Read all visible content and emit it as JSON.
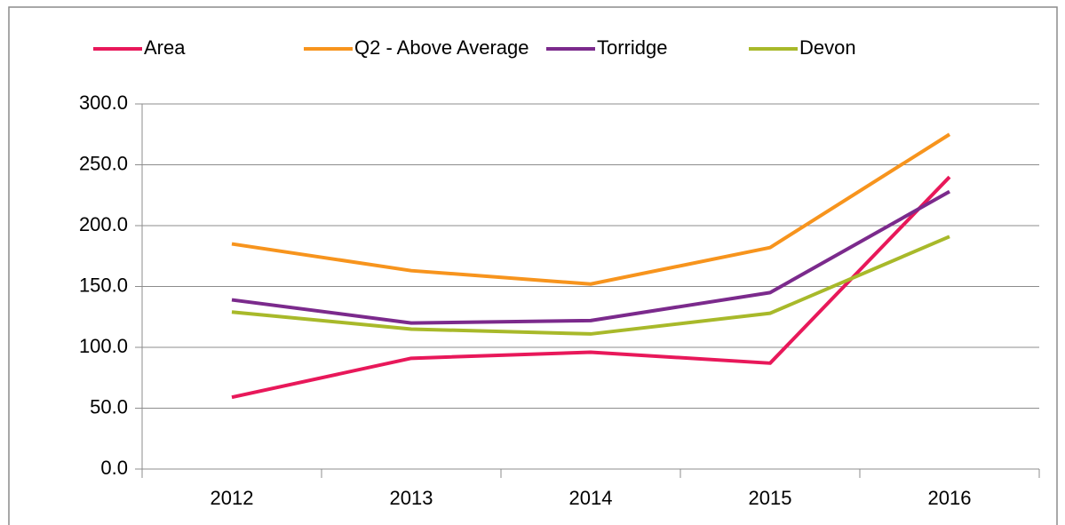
{
  "chart_data": {
    "type": "line",
    "categories": [
      "2012",
      "2013",
      "2014",
      "2015",
      "2016"
    ],
    "series": [
      {
        "name": "Area",
        "color": "#e8185a",
        "values": [
          59,
          91,
          96,
          87,
          240
        ]
      },
      {
        "name": "Q2 - Above Average",
        "color": "#f7941d",
        "values": [
          185,
          163,
          152,
          182,
          275
        ]
      },
      {
        "name": "Torridge",
        "color": "#7b2a8c",
        "values": [
          139,
          120,
          122,
          145,
          228
        ]
      },
      {
        "name": "Devon",
        "color": "#a8b92a",
        "values": [
          129,
          115,
          111,
          128,
          191
        ]
      }
    ],
    "ylim": [
      0,
      300
    ],
    "yticks": [
      {
        "value": 0,
        "label": "0.0"
      },
      {
        "value": 50,
        "label": "50.0"
      },
      {
        "value": 100,
        "label": "100.0"
      },
      {
        "value": 150,
        "label": "150.0"
      },
      {
        "value": 200,
        "label": "200.0"
      },
      {
        "value": 250,
        "label": "250.0"
      },
      {
        "value": 300,
        "label": "300.0"
      }
    ],
    "grid": true,
    "legend": "top"
  }
}
